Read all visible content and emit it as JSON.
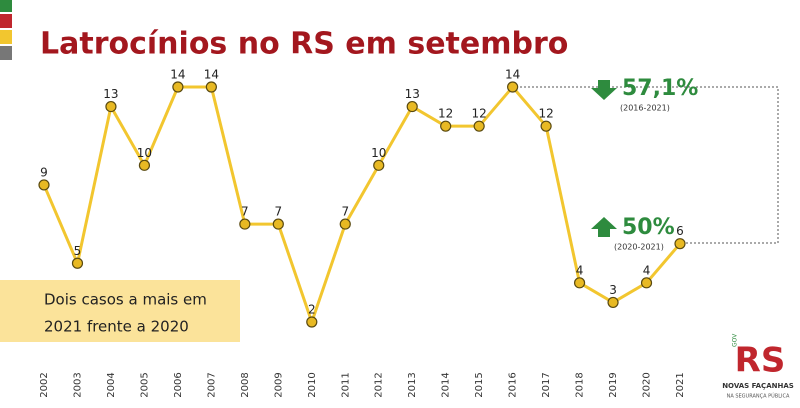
{
  "chart_data": {
    "type": "line",
    "title": "Latrocínios no RS em setembro",
    "categories": [
      "2002",
      "2003",
      "2004",
      "2005",
      "2006",
      "2007",
      "2008",
      "2009",
      "2010",
      "2011",
      "2012",
      "2013",
      "2014",
      "2015",
      "2016",
      "2017",
      "2018",
      "2019",
      "2020",
      "2021"
    ],
    "values": [
      9,
      5,
      13,
      10,
      14,
      14,
      7,
      7,
      2,
      7,
      10,
      13,
      12,
      12,
      14,
      12,
      4,
      3,
      4,
      6
    ],
    "color": "#f2c62f",
    "annotations": [
      {
        "text": "57,1%",
        "period": "(2016-2021)",
        "direction": "down"
      },
      {
        "text": "50%",
        "period": "(2020-2021)",
        "direction": "up"
      }
    ],
    "note": [
      "Dois casos a mais em",
      "2021 frente a 2020"
    ],
    "logo": {
      "mark": "RS",
      "gov": "GOV",
      "line1": "NOVAS FAÇANHAS",
      "line2": "NA SEGURANÇA PÚBLICA"
    }
  }
}
